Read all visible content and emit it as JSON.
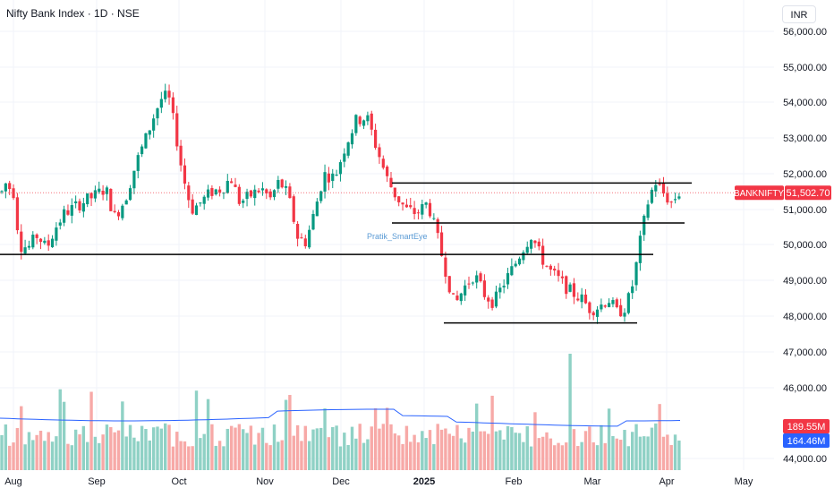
{
  "header": {
    "symbol_title": "Nifty Bank Index · 1D · NSE",
    "currency": "INR"
  },
  "watermark": "Pratik_SmartEye",
  "chart_data": {
    "type": "candlestick",
    "x_tick_labels": [
      "Aug",
      "Sep",
      "Oct",
      "Nov",
      "Dec",
      "2025",
      "Feb",
      "Mar",
      "Apr",
      "May"
    ],
    "y_tick_labels": [
      "56,000.00",
      "55,000.00",
      "54,000.00",
      "53,000.00",
      "52,000.00",
      "51,000.00",
      "50,000.00",
      "49,000.00",
      "48,000.00",
      "47,000.00",
      "46,000.00",
      "44,000.00"
    ],
    "ylim": [
      44000,
      56500
    ],
    "grid": true,
    "last_price_label": {
      "name": "BANKNIFTY",
      "value": "51,502.70",
      "price": 51502.7
    },
    "volume_labels": [
      {
        "value": "189.55M",
        "color": "#f23645"
      },
      {
        "value": "164.46M",
        "color": "#2962ff"
      }
    ],
    "horizontal_lines": [
      {
        "price": 49750,
        "x_from": 0,
        "x_to": 730
      },
      {
        "price": 51750,
        "x_from": 438,
        "x_to": 773
      },
      {
        "price": 50630,
        "x_from": 438,
        "x_to": 765
      },
      {
        "price": 47830,
        "x_from": 496,
        "x_to": 712
      }
    ],
    "colors": {
      "up": "#089981",
      "down": "#f23645",
      "vol_up": "#8fd1c5",
      "vol_down": "#f7a9a7",
      "ma": "#2962ff",
      "line": "#000000"
    }
  }
}
